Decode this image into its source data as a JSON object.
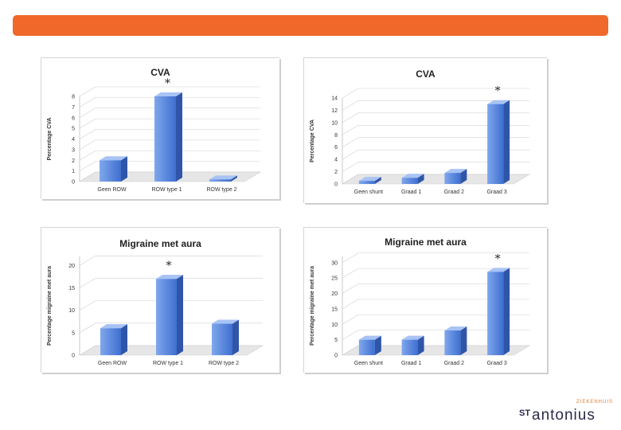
{
  "colors": {
    "accent_bar": "#f0682a",
    "bar_front_top": "#7fa7ec",
    "bar_front_bottom": "#3f6fd0",
    "bar_side": "#2f55a8",
    "bar_top": "#a8c3f4",
    "grid": "#d0d0d0",
    "floor": "#e6e6e6"
  },
  "logo": {
    "subtitle": "ZIEKENHUIS",
    "prefix": "ST",
    "name": "antonius"
  },
  "chart_data": [
    {
      "type": "bar",
      "title": "CVA",
      "ylabel": "Percentage CVA",
      "xlabel": "",
      "categories": [
        "Geen ROW",
        "ROW type 1",
        "ROW type 2"
      ],
      "values": [
        2,
        8,
        0.2
      ],
      "ylim": [
        0,
        8
      ],
      "yticks": [
        "0",
        "1",
        "2",
        "3",
        "4",
        "5",
        "6",
        "7",
        "8"
      ],
      "annotations": [
        {
          "text": "*",
          "category": 1
        }
      ],
      "grid": true,
      "legend": "none"
    },
    {
      "type": "bar",
      "title": "CVA",
      "ylabel": "Percentage CVA",
      "xlabel": "",
      "categories": [
        "Geen shunt",
        "Graad 1",
        "Graad 2",
        "Graad 3"
      ],
      "values": [
        0.5,
        1,
        1.8,
        13
      ],
      "ylim": [
        0,
        14
      ],
      "yticks": [
        "0",
        "2",
        "4",
        "6",
        "8",
        "10",
        "12",
        "14"
      ],
      "annotations": [
        {
          "text": "*",
          "category": 3
        }
      ],
      "grid": true,
      "legend": "none"
    },
    {
      "type": "bar",
      "title": "Migraine met aura",
      "ylabel": "Percentage migraine met aura",
      "xlabel": "",
      "categories": [
        "Geen ROW",
        "ROW type 1",
        "ROW type 2"
      ],
      "values": [
        6,
        17,
        7
      ],
      "ylim": [
        0,
        22
      ],
      "yticks": [
        "0",
        "5",
        "10",
        "15",
        "20"
      ],
      "tick_step": 5,
      "annotations": [
        {
          "text": "*",
          "category": 1
        }
      ],
      "grid": true,
      "legend": "none"
    },
    {
      "type": "bar",
      "title": "Migraine met aura",
      "ylabel": "Percentage migraine met aura",
      "xlabel": "",
      "categories": [
        "Geen shunt",
        "Graad 1",
        "Graad 2",
        "Graad 3"
      ],
      "values": [
        5,
        5,
        8,
        27
      ],
      "ylim": [
        0,
        32
      ],
      "yticks": [
        "0",
        "5",
        "10",
        "15",
        "20",
        "25",
        "30"
      ],
      "tick_step": 5,
      "annotations": [
        {
          "text": "*",
          "category": 3
        }
      ],
      "grid": true,
      "legend": "none"
    }
  ]
}
